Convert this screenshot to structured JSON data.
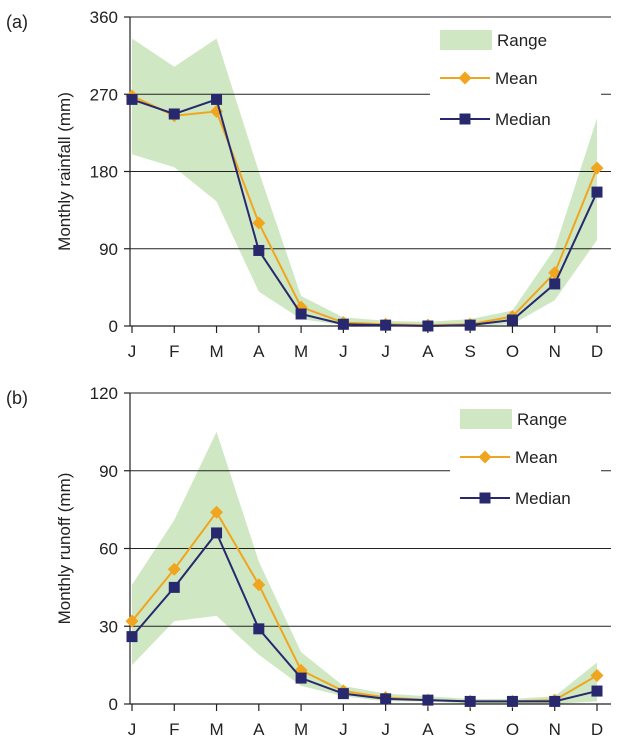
{
  "chart_data": [
    {
      "panel_label": "(a)",
      "type": "line",
      "ylabel": "Monthly rainfall (mm)",
      "ylim": [
        0,
        360
      ],
      "yticks": [
        0,
        90,
        180,
        270,
        360
      ],
      "categories": [
        "J",
        "F",
        "M",
        "A",
        "M",
        "J",
        "J",
        "A",
        "S",
        "O",
        "N",
        "D"
      ],
      "legend": {
        "position": "top-right",
        "range_label": "Range",
        "mean_label": "Mean",
        "median_label": "Median"
      },
      "range": {
        "low": [
          200,
          185,
          145,
          40,
          8,
          1,
          0,
          0,
          0,
          2,
          30,
          100
        ],
        "high": [
          335,
          302,
          335,
          180,
          35,
          10,
          6,
          5,
          8,
          18,
          90,
          242
        ]
      },
      "series": [
        {
          "name": "Mean",
          "values": [
            268,
            245,
            250,
            120,
            22,
            4,
            2,
            1,
            2,
            11,
            62,
            184
          ]
        },
        {
          "name": "Median",
          "values": [
            264,
            247,
            264,
            88,
            14,
            2,
            1,
            0,
            1,
            7,
            49,
            156
          ]
        }
      ]
    },
    {
      "panel_label": "(b)",
      "type": "line",
      "ylabel": "Monthly runoff (mm)",
      "ylim": [
        0,
        120
      ],
      "yticks": [
        0,
        30,
        60,
        90,
        120
      ],
      "categories": [
        "J",
        "F",
        "M",
        "A",
        "M",
        "J",
        "J",
        "A",
        "S",
        "O",
        "N",
        "D"
      ],
      "legend": {
        "position": "top-right",
        "range_label": "Range",
        "mean_label": "Mean",
        "median_label": "Median"
      },
      "range": {
        "low": [
          15,
          32,
          34,
          19,
          7,
          3,
          1,
          1,
          0,
          0,
          0,
          1
        ],
        "high": [
          46,
          71,
          105,
          55,
          20,
          7,
          4,
          3,
          2,
          2,
          3,
          16
        ]
      },
      "series": [
        {
          "name": "Mean",
          "values": [
            32,
            52,
            74,
            46,
            13,
            5,
            2.5,
            1.5,
            1,
            1,
            1.5,
            11
          ]
        },
        {
          "name": "Median",
          "values": [
            26,
            45,
            66,
            29,
            10,
            4,
            2,
            1.5,
            1,
            1,
            1,
            5
          ]
        }
      ]
    }
  ],
  "colors": {
    "range": "#cfe8c3",
    "mean": "#f0a51f",
    "median": "#27286e",
    "grid": "#222222"
  }
}
